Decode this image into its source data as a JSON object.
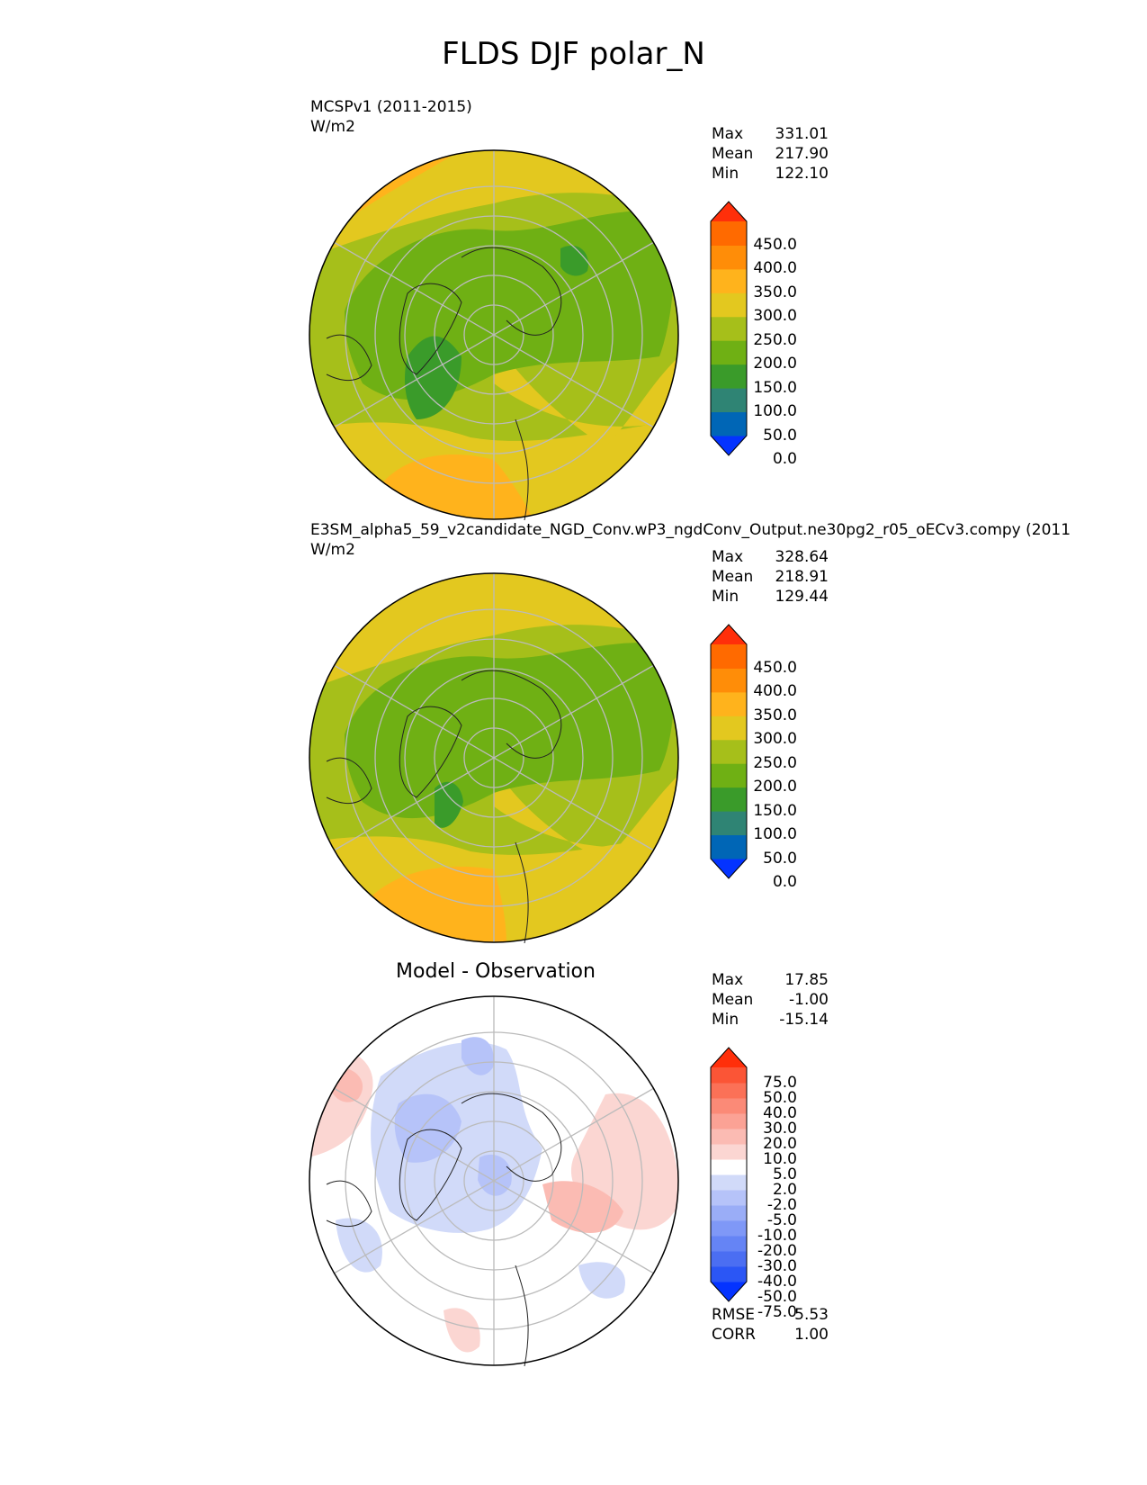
{
  "figure": {
    "title": "FLDS DJF polar_N"
  },
  "panels": [
    {
      "id": "test",
      "title_line1": "MCSPv1 (2011-2015)",
      "title_line2": "W/m2",
      "stats": [
        {
          "label": "Max",
          "value": "331.01"
        },
        {
          "label": "Mean",
          "value": "217.90"
        },
        {
          "label": "Min",
          "value": "122.10"
        }
      ],
      "colorbar": {
        "colors": [
          "#0433ff",
          "#0066b6",
          "#2f8474",
          "#3a9b2a",
          "#6fb014",
          "#a6bf1a",
          "#e3c81f",
          "#ffb31c",
          "#ff8d08",
          "#ff6a00",
          "#ff2f0a"
        ],
        "labels": [
          "450.0",
          "400.0",
          "350.0",
          "300.0",
          "250.0",
          "200.0",
          "150.0",
          "100.0",
          "50.0",
          "0.0"
        ]
      }
    },
    {
      "id": "ref",
      "title_line1": "E3SM_alpha5_59_v2candidate_NGD_Conv.wP3_ngdConv_Output.ne30pg2_r05_oECv3.compy (2011",
      "title_line2": "W/m2",
      "stats": [
        {
          "label": "Max",
          "value": "328.64"
        },
        {
          "label": "Mean",
          "value": "218.91"
        },
        {
          "label": "Min",
          "value": "129.44"
        }
      ],
      "colorbar": {
        "colors": [
          "#0433ff",
          "#0066b6",
          "#2f8474",
          "#3a9b2a",
          "#6fb014",
          "#a6bf1a",
          "#e3c81f",
          "#ffb31c",
          "#ff8d08",
          "#ff6a00",
          "#ff2f0a"
        ],
        "labels": [
          "450.0",
          "400.0",
          "350.0",
          "300.0",
          "250.0",
          "200.0",
          "150.0",
          "100.0",
          "50.0",
          "0.0"
        ]
      }
    },
    {
      "id": "diff",
      "center_title": "Model - Observation",
      "stats": [
        {
          "label": "Max",
          "value": "17.85"
        },
        {
          "label": "Mean",
          "value": "-1.00"
        },
        {
          "label": "Min",
          "value": "-15.14"
        }
      ],
      "colorbar": {
        "colors": [
          "#0433ff",
          "#2b56f5",
          "#4b6ef2",
          "#6584f5",
          "#7f98f7",
          "#9aadf7",
          "#b6c3f9",
          "#d1daf9",
          "#ffffff",
          "#fbd6d2",
          "#fbbbb3",
          "#fba295",
          "#fb8a77",
          "#fb7157",
          "#fb5536",
          "#ff2f0a"
        ],
        "labels": [
          "75.0",
          "50.0",
          "40.0",
          "30.0",
          "20.0",
          "10.0",
          "5.0",
          "2.0",
          "-2.0",
          "-5.0",
          "-10.0",
          "-20.0",
          "-30.0",
          "-40.0",
          "-50.0",
          "-75.0"
        ]
      },
      "metrics": [
        {
          "label": "RMSE",
          "value": "5.53"
        },
        {
          "label": "CORR",
          "value": "1.00"
        }
      ]
    }
  ],
  "chart_data": [
    {
      "type": "heatmap",
      "title": "MCSPv1 (2011-2015)",
      "units": "W/m2",
      "levels": [
        0,
        50,
        100,
        150,
        200,
        250,
        300,
        350,
        400,
        450
      ],
      "stats": {
        "max": 331.01,
        "mean": 217.9,
        "min": 122.1
      }
    },
    {
      "type": "heatmap",
      "title": "E3SM_alpha5_59_v2candidate_NGD_Conv.wP3_ngdConv_Output.ne30pg2_r05_oECv3.compy (2011",
      "units": "W/m2",
      "levels": [
        0,
        50,
        100,
        150,
        200,
        250,
        300,
        350,
        400,
        450
      ],
      "stats": {
        "max": 328.64,
        "mean": 218.91,
        "min": 129.44
      }
    },
    {
      "type": "heatmap",
      "title": "Model - Observation",
      "levels": [
        -75,
        -50,
        -40,
        -30,
        -20,
        -10,
        -5,
        -2,
        2,
        5,
        10,
        20,
        30,
        40,
        50,
        75
      ],
      "stats": {
        "max": 17.85,
        "mean": -1.0,
        "min": -15.14,
        "rmse": 5.53,
        "corr": 1.0
      }
    }
  ]
}
